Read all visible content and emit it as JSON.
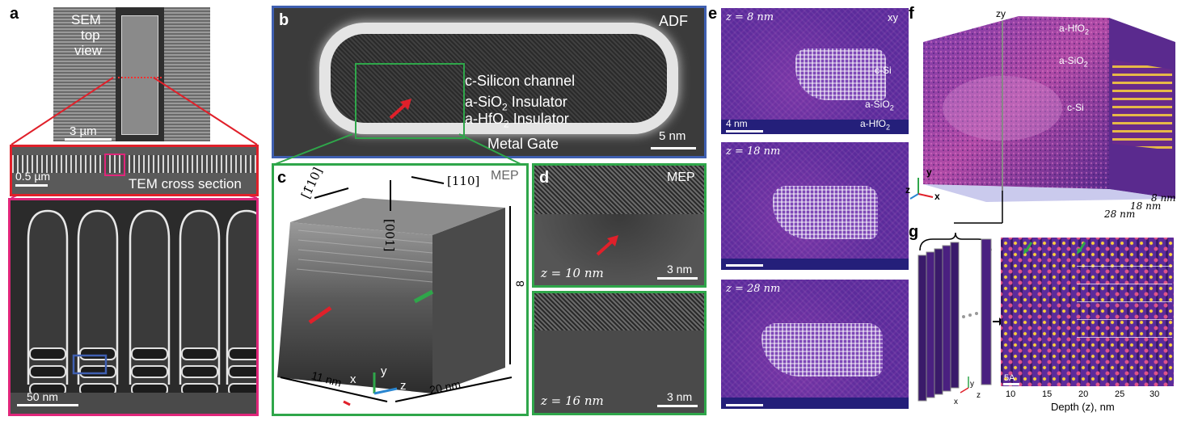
{
  "panels": {
    "a": {
      "label": "a",
      "sem_title": [
        "SEM",
        "top",
        "view"
      ],
      "sem_scale": "3 µm",
      "tem_scale": "0.5 µm",
      "tem_caption": "TEM cross section",
      "zoom_scale": "50 nm"
    },
    "b": {
      "label": "b",
      "mode": "ADF",
      "channel": "c-Silicon channel",
      "sio2": "a-SiO",
      "sio2_sub": "2",
      "sio2_suffix": " Insulator",
      "hfo2": "a-HfO",
      "hfo2_sub": "2",
      "hfo2_suffix": " Insulator",
      "gate": "Metal Gate",
      "scale": "5 nm"
    },
    "c": {
      "label": "c",
      "mode": "MEP",
      "dir1": "[1̄10]",
      "dir2": "[110]",
      "dir3": "[001]",
      "dim_y": "8 nm",
      "dim_x": "11 nm",
      "dim_z": "20 nm",
      "axis_x": "x",
      "axis_y": "y",
      "axis_z": "z"
    },
    "d": {
      "label": "d",
      "mode": "MEP",
      "top_z": "z = 10 nm",
      "top_scale": "3 nm",
      "bottom_z": "z = 16 nm",
      "bottom_scale": "3 nm"
    },
    "e": {
      "label": "e",
      "slices": [
        {
          "z": "z = 8 nm",
          "plane": "xy",
          "csi": "c-Si",
          "sio2": "a-SiO",
          "sio2_sub": "2",
          "hfo2": "a-HfO",
          "hfo2_sub": "2",
          "scale": "4 nm"
        },
        {
          "z": "z = 18 nm"
        },
        {
          "z": "z = 28 nm"
        }
      ]
    },
    "f": {
      "label": "f",
      "plane": "zy",
      "hfo2": "a-HfO",
      "hfo2_sub": "2",
      "sio2": "a-SiO",
      "sio2_sub": "2",
      "csi": "c-Si",
      "depths": [
        "8 nm",
        "18 nm",
        "28 nm"
      ],
      "axis_x": "x",
      "axis_y": "y",
      "axis_z": "z"
    },
    "g": {
      "label": "g",
      "scale": "5A",
      "xlabel": "Depth (z), nm",
      "ticks": [
        "10",
        "15",
        "20",
        "25",
        "30"
      ],
      "axis_x": "x",
      "axis_y": "y",
      "axis_z": "z"
    }
  },
  "colors": {
    "red_box": "#e0202a",
    "magenta_box": "#e0267a",
    "blue_box": "#3f5fb0",
    "green_box": "#2fa64a",
    "magma_purple": "#5b2b9b",
    "magma_yellow": "#ffd23a"
  }
}
